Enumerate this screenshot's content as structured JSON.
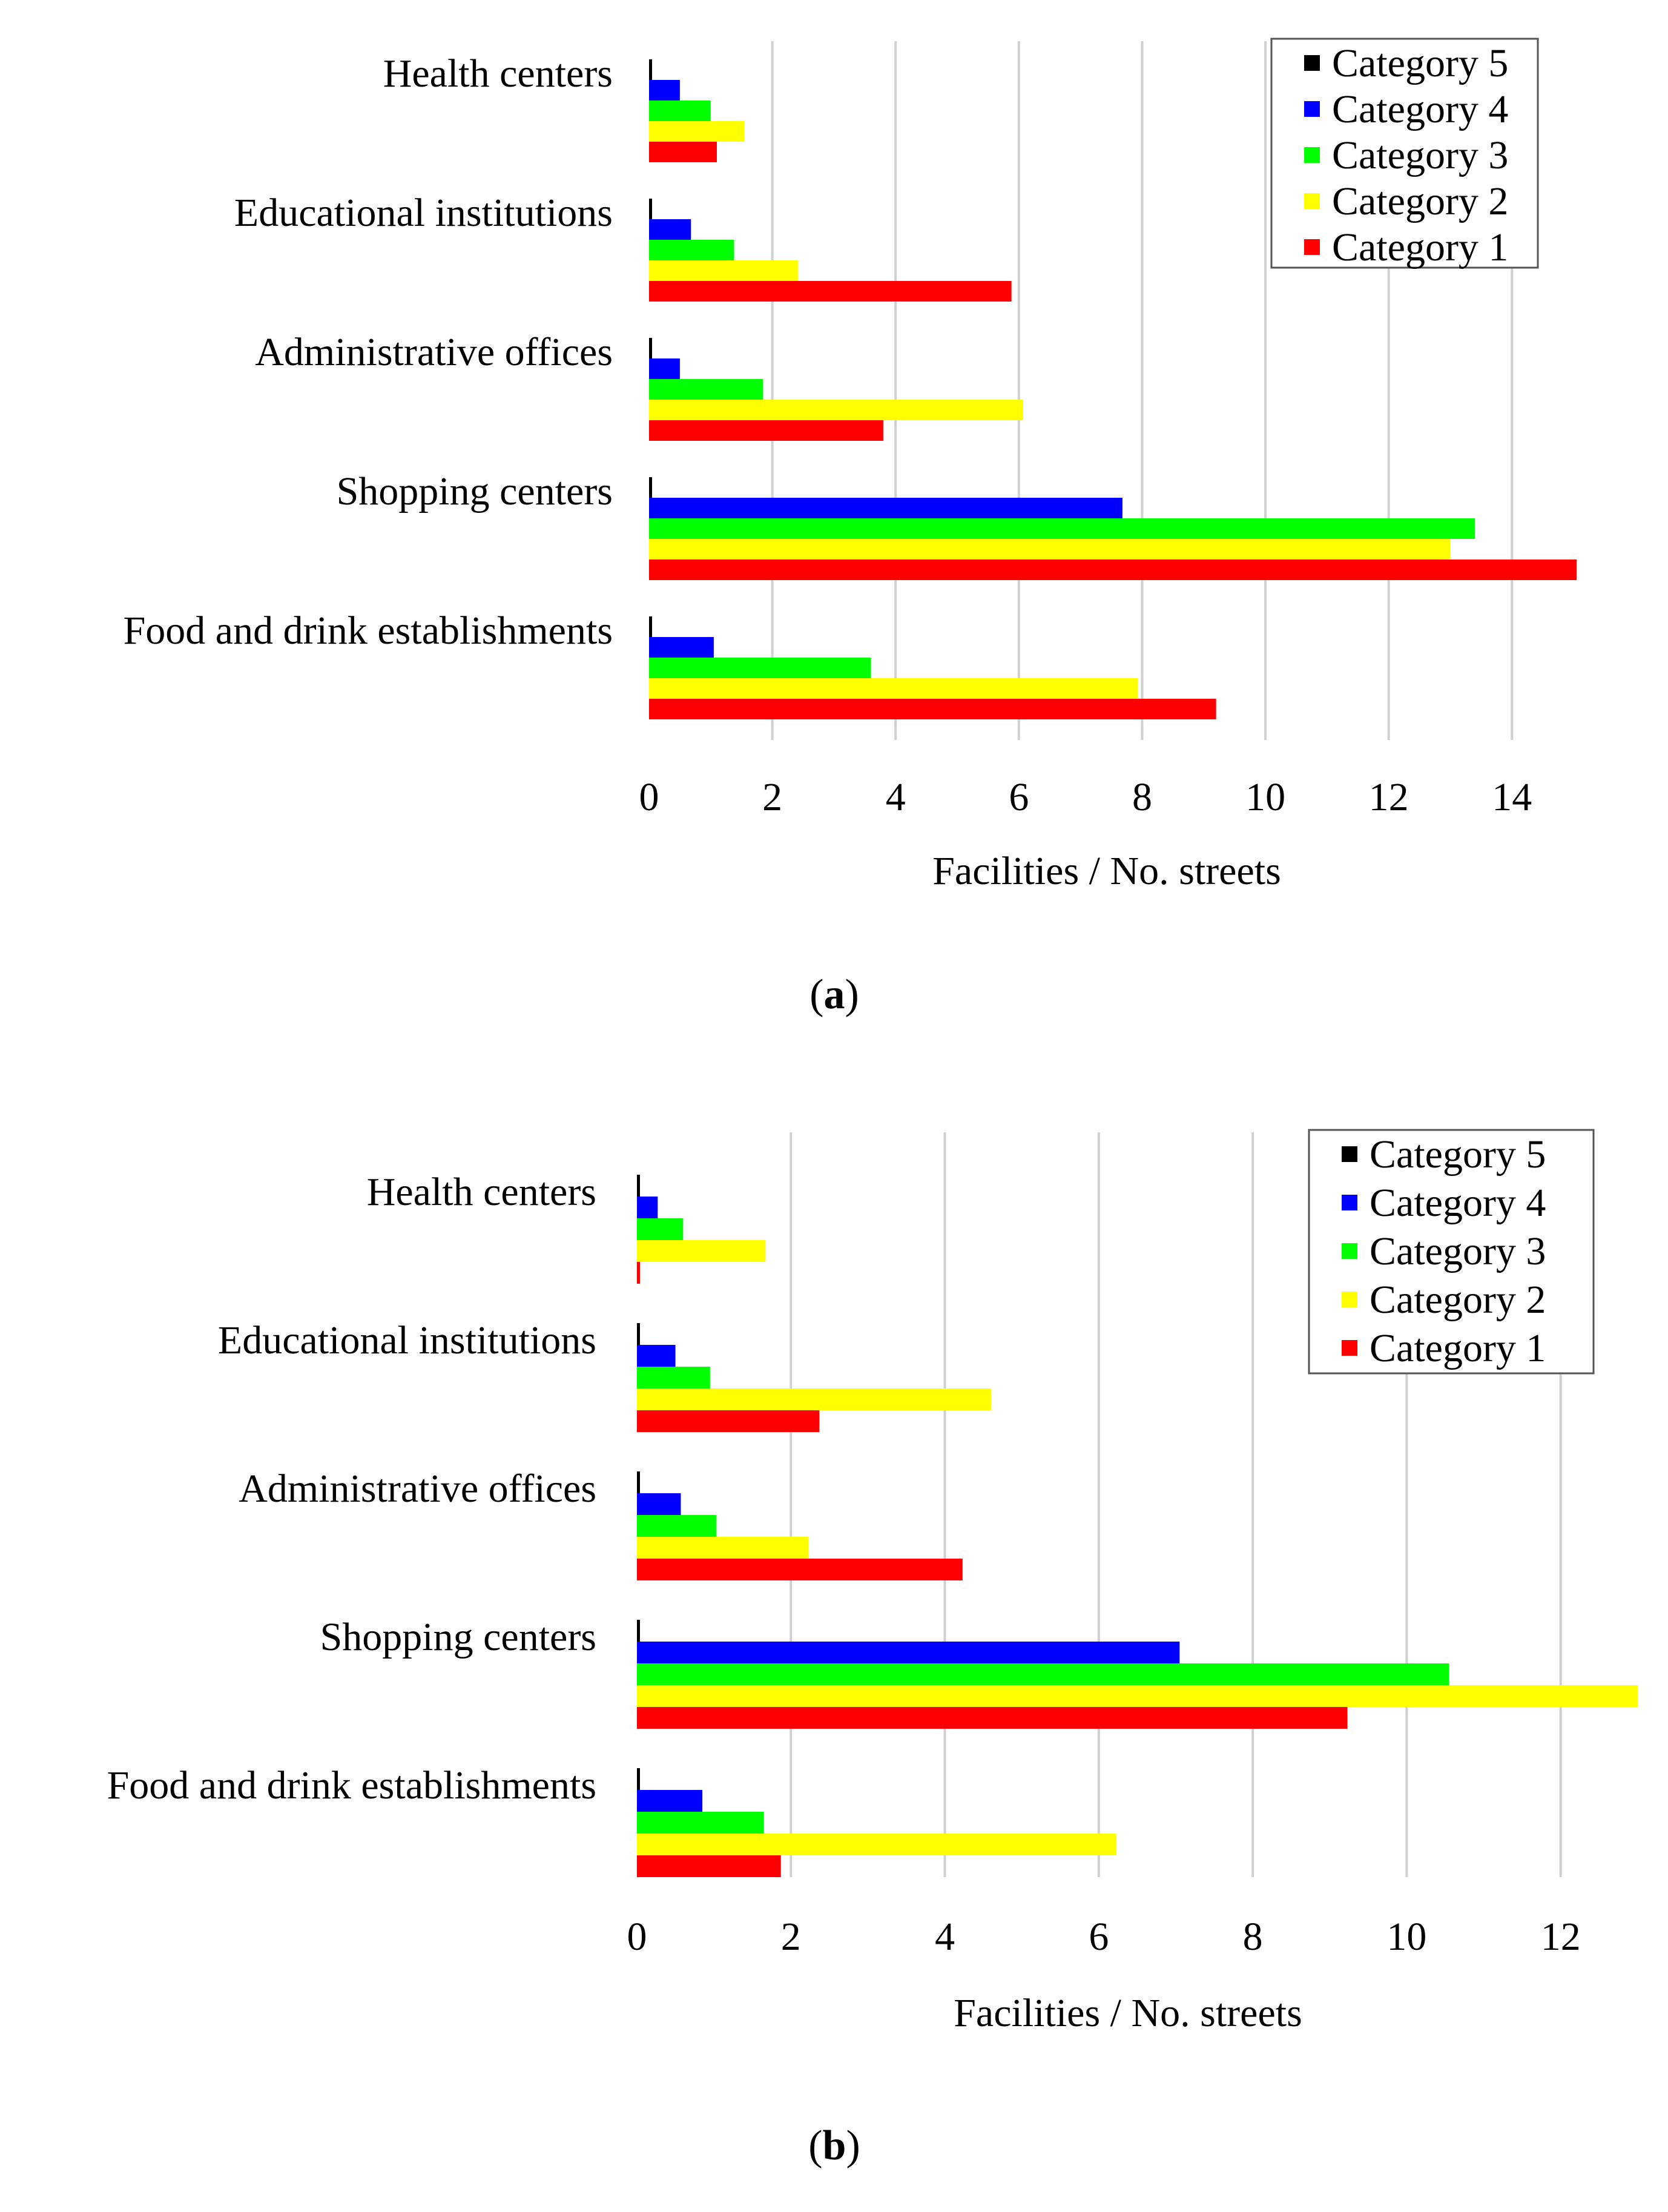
{
  "series_colors": {
    "Category 5": "#000000",
    "Category 4": "#0000ff",
    "Category 3": "#00ff00",
    "Category 2": "#ffff00",
    "Category 1": "#ff0000"
  },
  "chart_data": [
    {
      "type": "bar",
      "orientation": "horizontal",
      "panel": "(a)",
      "panel_letter": "a",
      "categories": [
        "Health centers",
        "Educational institutions",
        "Administrative offices",
        "Shopping centers",
        "Food and drink establishments"
      ],
      "series": [
        {
          "name": "Category 5",
          "values": [
            0.02,
            0.02,
            0.02,
            0.02,
            0.02
          ]
        },
        {
          "name": "Category 4",
          "values": [
            0.5,
            0.68,
            0.5,
            7.68,
            1.05
          ]
        },
        {
          "name": "Category 3",
          "values": [
            1.0,
            1.38,
            1.85,
            13.4,
            3.6
          ]
        },
        {
          "name": "Category 2",
          "values": [
            1.55,
            2.42,
            6.07,
            13.0,
            7.93
          ]
        },
        {
          "name": "Category 1",
          "values": [
            1.1,
            5.88,
            3.8,
            15.05,
            9.2
          ]
        }
      ],
      "xlabel": "Facilities / No. streets",
      "ylabel": "",
      "xlim": [
        0,
        15.5
      ],
      "xticks": [
        0,
        2,
        4,
        6,
        8,
        10,
        12,
        14
      ],
      "xtick_labels": [
        "0",
        "2",
        "4",
        "6",
        "8",
        "10",
        "12",
        "14"
      ],
      "grid": "vertical",
      "legend": {
        "position": "top-right",
        "entries": [
          "Category 5",
          "Category 4",
          "Category 3",
          "Category 2",
          "Category 1"
        ]
      }
    },
    {
      "type": "bar",
      "orientation": "horizontal",
      "panel": "(b)",
      "panel_letter": "b",
      "categories": [
        "Health centers",
        "Educational institutions",
        "Administrative offices",
        "Shopping centers",
        "Food and drink establishments"
      ],
      "series": [
        {
          "name": "Category 5",
          "values": [
            0.02,
            0.02,
            0.02,
            0.02,
            0.02
          ]
        },
        {
          "name": "Category 4",
          "values": [
            0.27,
            0.5,
            0.57,
            7.05,
            0.85
          ]
        },
        {
          "name": "Category 3",
          "values": [
            0.6,
            0.95,
            1.03,
            10.55,
            1.65
          ]
        },
        {
          "name": "Category 2",
          "values": [
            1.67,
            4.6,
            2.23,
            13.0,
            6.23
          ]
        },
        {
          "name": "Category 1",
          "values": [
            0.03,
            2.37,
            4.23,
            9.23,
            1.87
          ]
        }
      ],
      "xlabel": "Facilities / No. streets",
      "ylabel": "",
      "xlim": [
        0,
        13.3
      ],
      "xticks": [
        0,
        2,
        4,
        6,
        8,
        10,
        12
      ],
      "xtick_labels": [
        "0",
        "2",
        "4",
        "6",
        "8",
        "10",
        "12"
      ],
      "grid": "vertical",
      "legend": {
        "position": "top-right",
        "entries": [
          "Category 5",
          "Category 4",
          "Category 3",
          "Category 2",
          "Category 1"
        ]
      }
    }
  ]
}
